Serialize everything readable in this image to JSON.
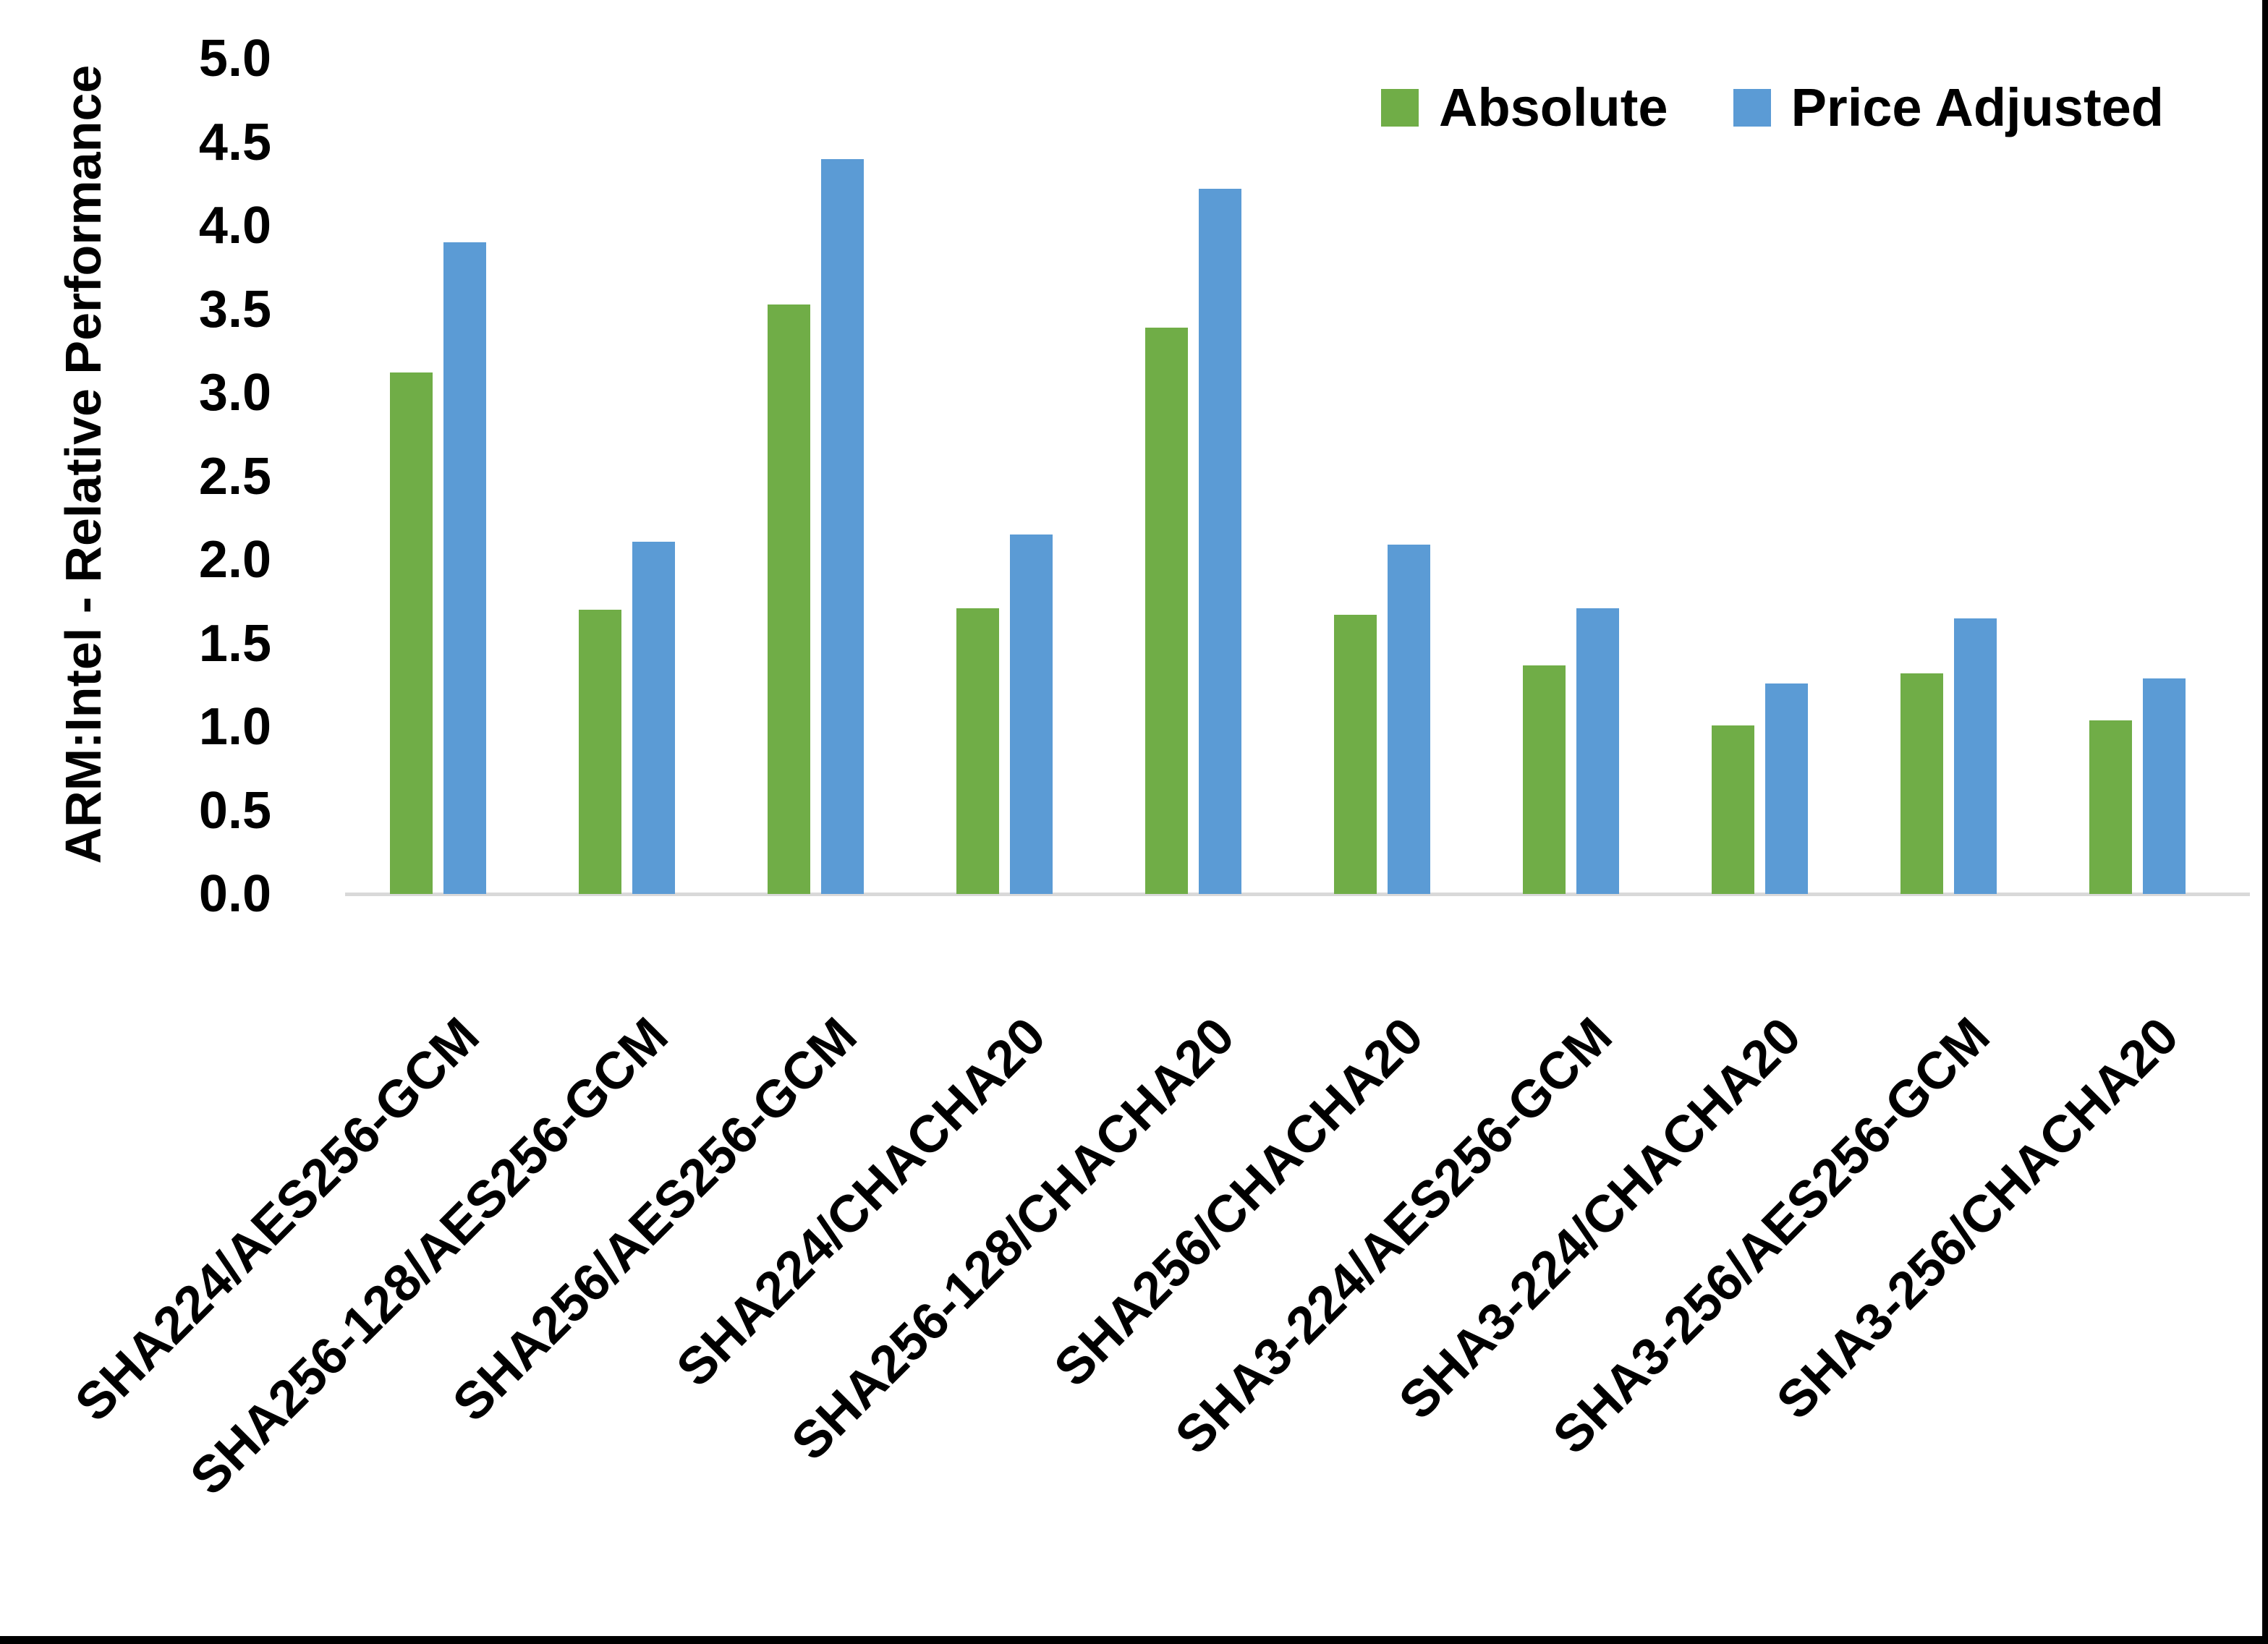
{
  "chart_data": {
    "type": "bar",
    "title": "",
    "ylabel": "ARM:Intel - Relative Performance",
    "xlabel": "",
    "ylim": [
      0,
      5
    ],
    "y_tick_step": 0.5,
    "y_ticks": [
      "0.0",
      "0.5",
      "1.0",
      "1.5",
      "2.0",
      "2.5",
      "3.0",
      "3.5",
      "4.0",
      "4.5",
      "5.0"
    ],
    "grid": false,
    "legend_position": "top-right",
    "categories": [
      "SHA224/AES256-GCM",
      "SHA256-128/AES256-GCM",
      "SHA256/AES256-GCM",
      "SHA224/CHACHA20",
      "SHA256-128/CHACHA20",
      "SHA256/CHACHA20",
      "SHA3-224/AES256-GCM",
      "SHA3-224/CHACHA20",
      "SHA3-256/AES256-GCM",
      "SHA3-256/CHACHA20"
    ],
    "series": [
      {
        "name": "Absolute",
        "color": "#70AD47",
        "values": [
          3.12,
          1.7,
          3.53,
          1.71,
          3.39,
          1.67,
          1.37,
          1.01,
          1.32,
          1.04
        ]
      },
      {
        "name": "Price Adjusted",
        "color": "#5B9BD5",
        "values": [
          3.9,
          2.11,
          4.4,
          2.15,
          4.22,
          2.09,
          1.71,
          1.26,
          1.65,
          1.29
        ]
      }
    ],
    "axis_line_color": "#D9D9D9",
    "text_color": "#000000"
  },
  "frame": {
    "border_color": "#000000"
  }
}
